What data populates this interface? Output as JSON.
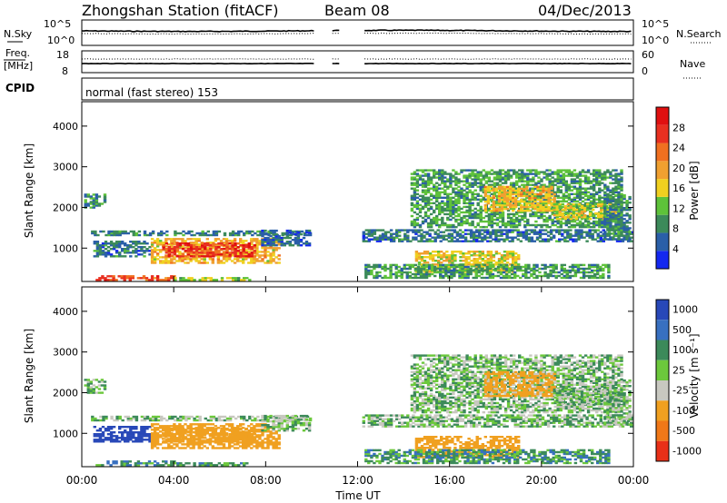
{
  "header": {
    "title": "Zhongshan Station (fitACF)",
    "beam": "Beam 08",
    "date": "04/Dec/2013"
  },
  "parameter_panels": {
    "nsky_label": "N.Sky",
    "nsky_ticks": [
      "10^5",
      "10^0"
    ],
    "nsearch_label": "N.Search",
    "nsearch_ticks": [
      "10^5",
      "10^0"
    ],
    "freq_label": "Freq.",
    "freq_unit": "[MHz]",
    "freq_ticks": [
      "18",
      "8"
    ],
    "nave_label": "Nave",
    "nave_ticks": [
      "60",
      "0"
    ],
    "cpid_label": "CPID",
    "cpid_text": "normal (fast stereo) 153"
  },
  "axes": {
    "ylabel": "Slant Range [km]",
    "yticks": [
      "4000",
      "3000",
      "2000",
      "1000"
    ],
    "xticks": [
      "00:00",
      "04:00",
      "08:00",
      "12:00",
      "16:00",
      "20:00",
      "00:00"
    ],
    "xlabel": "Time UT"
  },
  "colorbars": {
    "power_label": "Power [dB]",
    "power_ticks": [
      "28",
      "24",
      "20",
      "16",
      "12",
      "8",
      "4"
    ],
    "velocity_label": "Velocity [m s⁻¹]",
    "velocity_ticks": [
      "1000",
      "500",
      "100",
      "25",
      "-25",
      "-100",
      "-500",
      "-1000"
    ]
  },
  "chart_data": {
    "type": "heatmap",
    "x_range_hours": [
      0,
      24
    ],
    "y_range_km": [
      180,
      4600
    ],
    "data_gaps_hours": [
      [
        10.1,
        10.8
      ],
      [
        11.25,
        12.2
      ]
    ],
    "power_scale": {
      "colors": [
        "#1428f0",
        "#2a5fa8",
        "#3c8a5a",
        "#5ec23a",
        "#f0d020",
        "#f0a030",
        "#f07020",
        "#e83020",
        "#e01010"
      ],
      "min_db": 0,
      "max_db": 32
    },
    "velocity_scale": {
      "colors": [
        "#2848b8",
        "#3870c0",
        "#3c8a5a",
        "#6cc83c",
        "#c8c8c0",
        "#f0a020",
        "#f07818",
        "#e83018"
      ],
      "boundaries": [
        1000,
        500,
        100,
        25,
        -25,
        -100,
        -500,
        -1000
      ]
    },
    "echo_regions": [
      {
        "t0": 0.1,
        "t1": 1.0,
        "r0": 1980,
        "r1": 2300,
        "power": 9,
        "velocity": 20
      },
      {
        "t0": 0.4,
        "t1": 9.9,
        "r0": 1300,
        "r1": 1400,
        "power": 8,
        "velocity": 0
      },
      {
        "t0": 0.5,
        "t1": 3.0,
        "r0": 780,
        "r1": 1150,
        "power": 7,
        "velocity": 600
      },
      {
        "t0": 3.0,
        "t1": 8.6,
        "r0": 620,
        "r1": 1250,
        "power": 18,
        "velocity": -200
      },
      {
        "t0": 3.5,
        "t1": 7.5,
        "r0": 780,
        "r1": 1100,
        "power": 27,
        "velocity": -300
      },
      {
        "t0": 0.6,
        "t1": 4.0,
        "r0": 200,
        "r1": 300,
        "power": 25,
        "velocity": 80
      },
      {
        "t0": 4.0,
        "t1": 7.3,
        "r0": 200,
        "r1": 260,
        "power": 14,
        "velocity": 60
      },
      {
        "t0": 7.8,
        "t1": 9.9,
        "r0": 1050,
        "r1": 1450,
        "power": 6,
        "velocity": 0
      },
      {
        "t0": 12.2,
        "t1": 23.9,
        "r0": 1150,
        "r1": 1450,
        "power": 7,
        "velocity": 0
      },
      {
        "t0": 14.3,
        "t1": 23.5,
        "r0": 1500,
        "r1": 2900,
        "power": 10,
        "velocity": 0
      },
      {
        "t0": 17.5,
        "t1": 20.6,
        "r0": 1900,
        "r1": 2500,
        "power": 18,
        "velocity": -150
      },
      {
        "t0": 20.5,
        "t1": 23.2,
        "r0": 1700,
        "r1": 2100,
        "power": 16,
        "velocity": 0
      },
      {
        "t0": 14.5,
        "t1": 19.0,
        "r0": 400,
        "r1": 900,
        "power": 16,
        "velocity": -300
      },
      {
        "t0": 12.3,
        "t1": 22.9,
        "r0": 250,
        "r1": 600,
        "power": 10,
        "velocity": 60
      },
      {
        "t0": 22.7,
        "t1": 23.9,
        "r0": 1200,
        "r1": 2300,
        "power": 8,
        "velocity": 0
      }
    ]
  }
}
